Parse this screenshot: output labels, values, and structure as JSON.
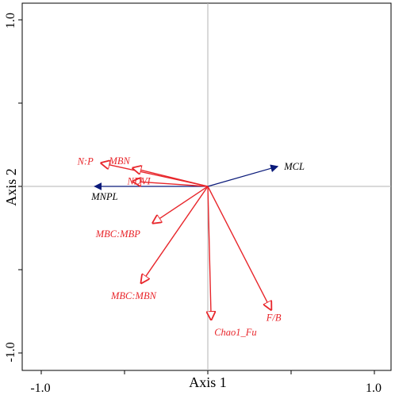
{
  "chart_data": {
    "type": "scatter",
    "subtype": "ordination-biplot",
    "xlabel": "Axis 1",
    "ylabel": "Axis 2",
    "xlim": [
      -1.0,
      1.0
    ],
    "ylim": [
      -1.0,
      1.0
    ],
    "x_tick_labels": [
      "-1.0",
      "1.0"
    ],
    "y_tick_labels": [
      "-1.0",
      "1.0"
    ],
    "grid": false,
    "origin_lines": true,
    "colors": {
      "explanatory": "#e8262b",
      "response": "#0a1a7a",
      "frame": "#000000",
      "origin_line": "#b3b3b3"
    },
    "vectors": [
      {
        "name": "MCL",
        "x": 0.42,
        "y": 0.12,
        "group": "response",
        "label_color": "#000000"
      },
      {
        "name": "MNPL",
        "x": -0.68,
        "y": 0.0,
        "group": "response",
        "label_color": "#000000"
      },
      {
        "name": "N:P",
        "x": -0.64,
        "y": 0.14,
        "group": "explanatory",
        "label_color": "#e8262b"
      },
      {
        "name": "MBN",
        "x": -0.45,
        "y": 0.11,
        "group": "explanatory",
        "label_color": "#e8262b"
      },
      {
        "name": "NDVI",
        "x": -0.45,
        "y": 0.03,
        "group": "explanatory",
        "label_color": "#e8262b"
      },
      {
        "name": "MBC:MBP",
        "x": -0.33,
        "y": -0.22,
        "group": "explanatory",
        "label_color": "#e8262b"
      },
      {
        "name": "MBC:MBN",
        "x": -0.4,
        "y": -0.58,
        "group": "explanatory",
        "label_color": "#e8262b"
      },
      {
        "name": "Chao1_Fu",
        "x": 0.02,
        "y": -0.8,
        "group": "explanatory",
        "label_color": "#e8262b"
      },
      {
        "name": "F/B",
        "x": 0.38,
        "y": -0.74,
        "group": "explanatory",
        "label_color": "#e8262b"
      }
    ]
  }
}
